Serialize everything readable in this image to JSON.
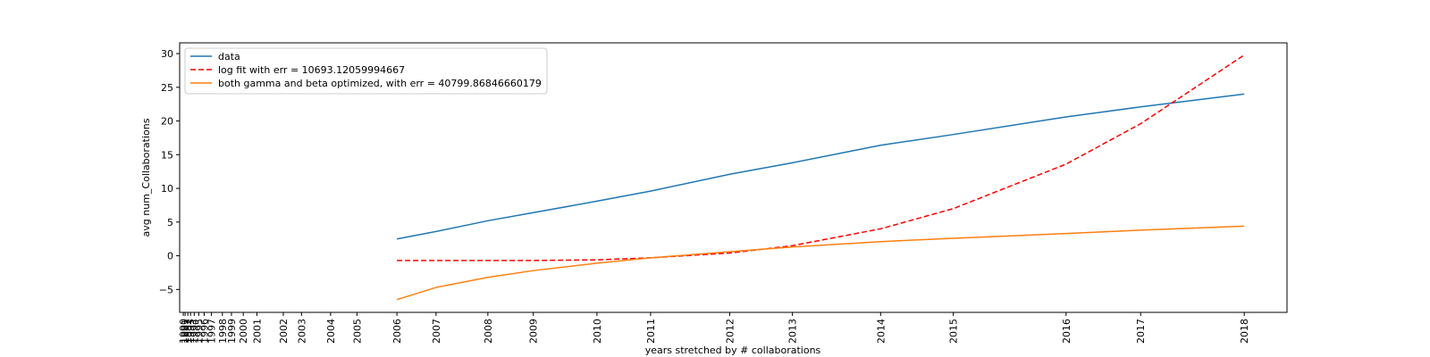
{
  "chart_data": {
    "type": "line",
    "x_label": "years stretched by # collaborations",
    "y_label": "avg num_Collaborations",
    "x": [
      235,
      278,
      335,
      385,
      455,
      514,
      601,
      670,
      767,
      847,
      971,
      1053,
      1167
    ],
    "series": [
      {
        "name": "data",
        "color": "#1f77b4",
        "dash": "solid",
        "values": [
          2.5,
          3.6,
          5.2,
          6.4,
          8.1,
          9.6,
          12.1,
          13.8,
          16.4,
          18.0,
          20.6,
          22.1,
          24.0
        ]
      },
      {
        "name": "log fit with err = 10693.12059994667",
        "color": "#ff0000",
        "dash": "dashed",
        "values": [
          -0.7,
          -0.7,
          -0.7,
          -0.7,
          -0.6,
          -0.3,
          0.4,
          1.5,
          4.0,
          7.0,
          13.6,
          19.6,
          29.8
        ]
      },
      {
        "name": "both gamma and beta optimized, with err = 40799.86846660179",
        "color": "#ff7f0e",
        "dash": "solid",
        "values": [
          -6.5,
          -4.7,
          -3.2,
          -2.2,
          -1.1,
          -0.3,
          0.6,
          1.3,
          2.1,
          2.6,
          3.3,
          3.8,
          4.4
        ]
      }
    ],
    "xlim": [
      -4,
      1214
    ],
    "ylim": [
      -8.4,
      31.6
    ],
    "yticks": [
      {
        "value": -5,
        "label": "−5"
      },
      0,
      5,
      10,
      15,
      20,
      25,
      30
    ],
    "xticks": [
      {
        "value": 0,
        "label": "1990"
      },
      {
        "value": 2,
        "label": "1991"
      },
      {
        "value": 5,
        "label": "1992"
      },
      {
        "value": 8,
        "label": "1993"
      },
      {
        "value": 12,
        "label": "1994"
      },
      {
        "value": 17,
        "label": "1995"
      },
      {
        "value": 23,
        "label": "1996"
      },
      {
        "value": 31,
        "label": "1997"
      },
      {
        "value": 43,
        "label": "1998"
      },
      {
        "value": 53,
        "label": "1999"
      },
      {
        "value": 66,
        "label": "2000"
      },
      {
        "value": 81,
        "label": "2001"
      },
      {
        "value": 110,
        "label": "2002"
      },
      {
        "value": 130,
        "label": "2003"
      },
      {
        "value": 162,
        "label": "2004"
      },
      {
        "value": 191,
        "label": "2005"
      },
      {
        "value": 235,
        "label": "2006"
      },
      {
        "value": 278,
        "label": "2007"
      },
      {
        "value": 335,
        "label": "2008"
      },
      {
        "value": 385,
        "label": "2009"
      },
      {
        "value": 455,
        "label": "2010"
      },
      {
        "value": 514,
        "label": "2011"
      },
      {
        "value": 601,
        "label": "2012"
      },
      {
        "value": 670,
        "label": "2013"
      },
      {
        "value": 767,
        "label": "2014"
      },
      {
        "value": 847,
        "label": "2015"
      },
      {
        "value": 971,
        "label": "2016"
      },
      {
        "value": 1053,
        "label": "2017"
      },
      {
        "value": 1167,
        "label": "2018"
      }
    ],
    "legend": "upper left"
  }
}
